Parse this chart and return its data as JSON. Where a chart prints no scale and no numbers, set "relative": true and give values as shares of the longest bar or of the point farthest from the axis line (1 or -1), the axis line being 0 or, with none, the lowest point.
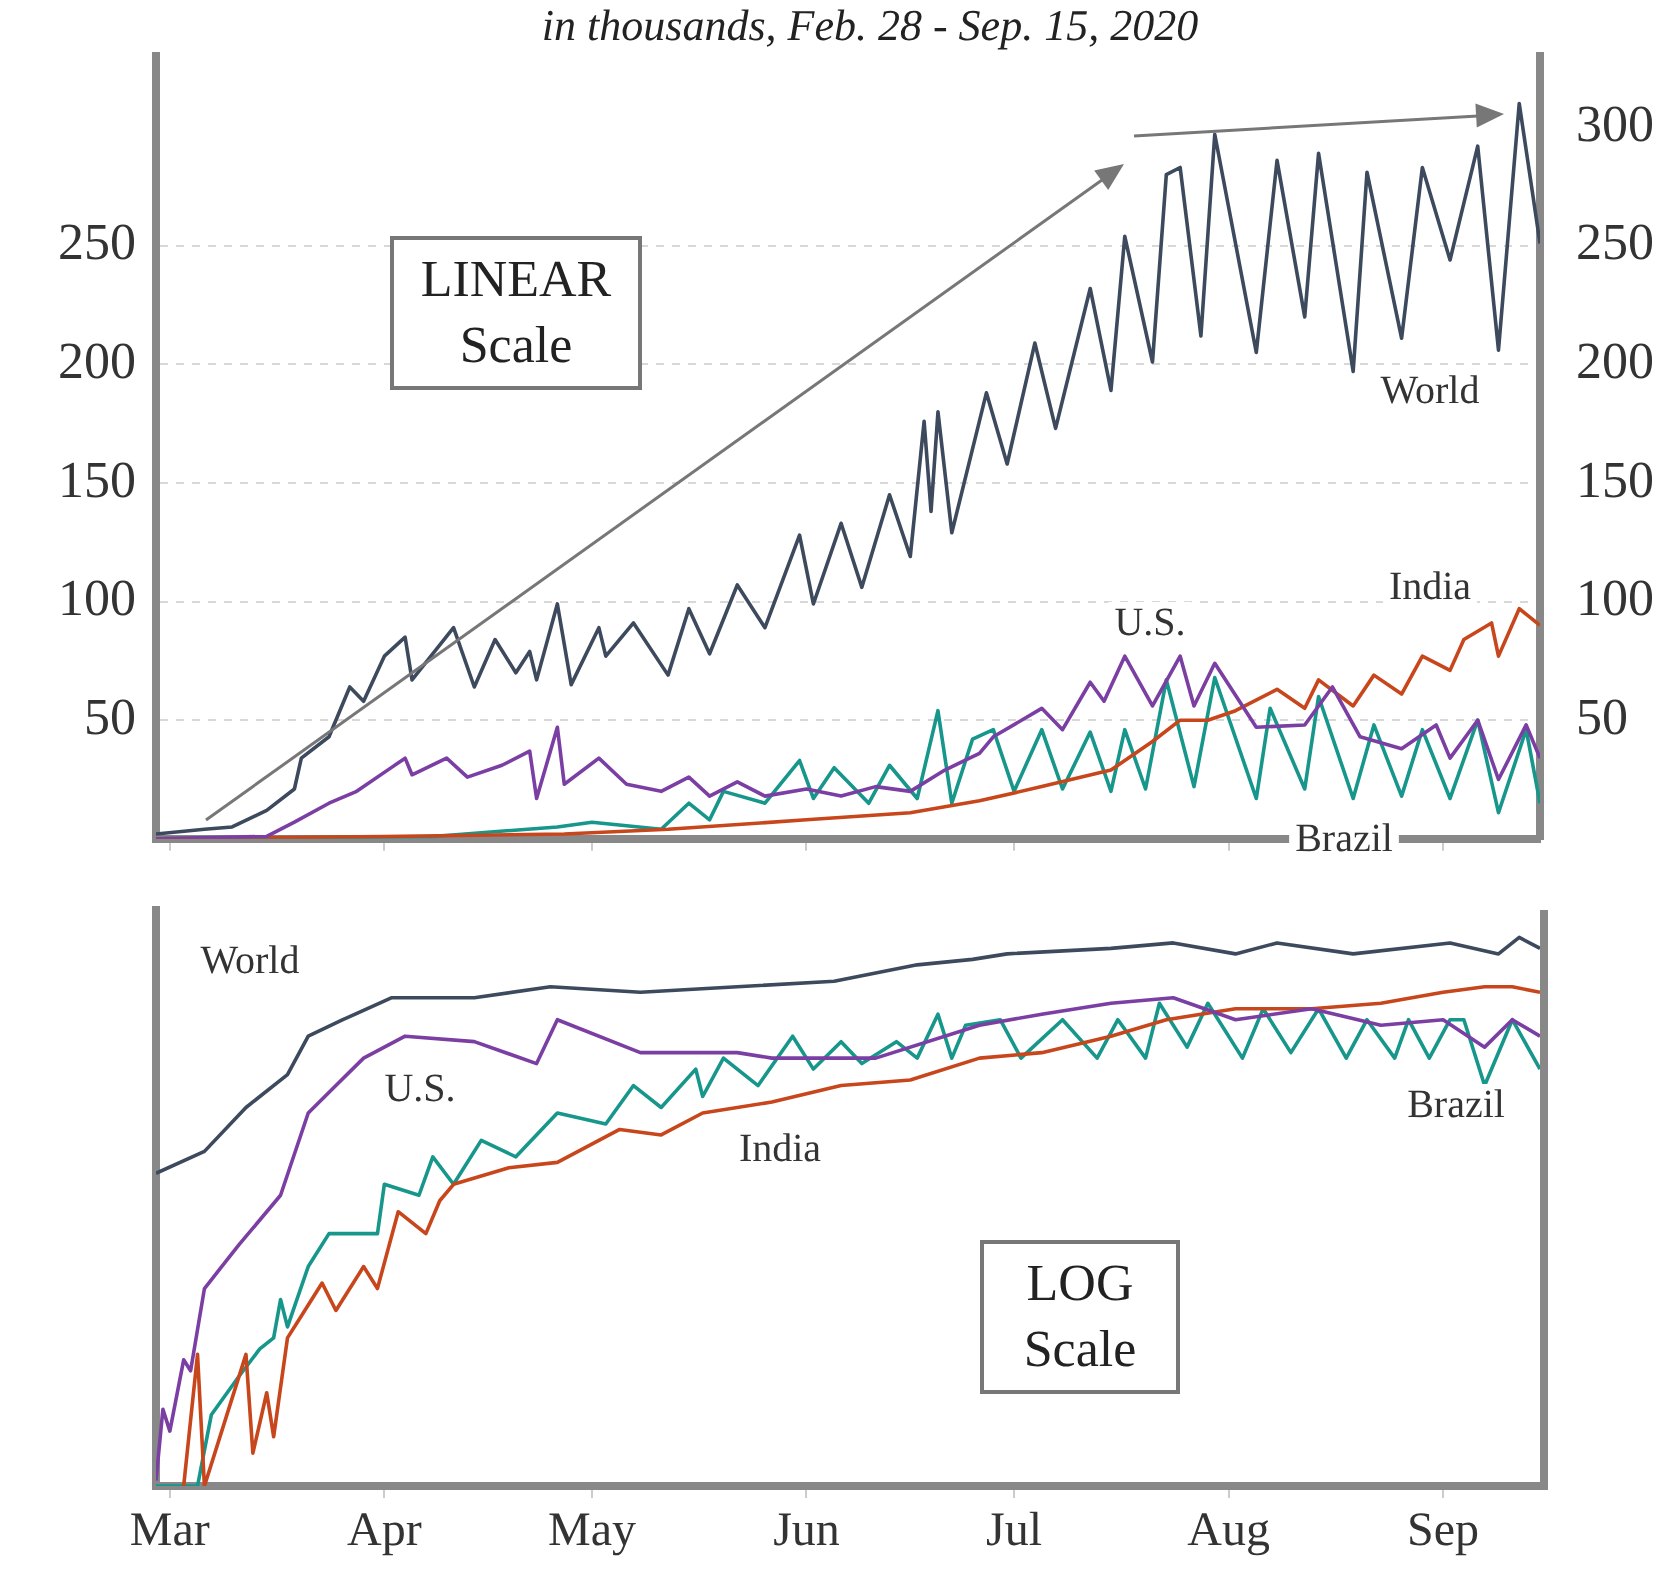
{
  "chart_data": [
    {
      "type": "line",
      "subtitle": "in thousands, Feb. 28 - Sep. 15, 2020",
      "annotations": [
        "LINEAR Scale"
      ],
      "xlim": [
        "2020-02-28",
        "2020-09-15"
      ],
      "xticks": [
        {
          "value": "2020-03-01",
          "label": null
        },
        {
          "value": "2020-04-01",
          "label": null
        },
        {
          "value": "2020-05-01",
          "label": null
        },
        {
          "value": "2020-06-01",
          "label": null
        },
        {
          "value": "2020-07-01",
          "label": null
        },
        {
          "value": "2020-08-01",
          "label": null
        },
        {
          "value": "2020-09-01",
          "label": null
        }
      ],
      "ylim": [
        0,
        330
      ],
      "yticks": [
        50,
        100,
        150,
        200,
        250
      ],
      "y2lim": [
        0,
        330
      ],
      "y2ticks": [
        50,
        100,
        150,
        200,
        250,
        300
      ],
      "tick_labels": "y",
      "grid": "y",
      "series": [
        {
          "name": "World",
          "color": "#3d4a5e",
          "x": [
            "2020-02-28",
            "2020-03-06",
            "2020-03-10",
            "2020-03-15",
            "2020-03-19",
            "2020-03-20",
            "2020-03-24",
            "2020-03-27",
            "2020-03-29",
            "2020-04-01",
            "2020-04-04",
            "2020-04-05",
            "2020-04-11",
            "2020-04-14",
            "2020-04-17",
            "2020-04-20",
            "2020-04-22",
            "2020-04-23",
            "2020-04-26",
            "2020-04-28",
            "2020-05-02",
            "2020-05-03",
            "2020-05-07",
            "2020-05-12",
            "2020-05-15",
            "2020-05-18",
            "2020-05-22",
            "2020-05-26",
            "2020-05-31",
            "2020-06-02",
            "2020-06-06",
            "2020-06-09",
            "2020-06-13",
            "2020-06-16",
            "2020-06-18",
            "2020-06-19",
            "2020-06-20",
            "2020-06-22",
            "2020-06-27",
            "2020-06-30",
            "2020-07-04",
            "2020-07-07",
            "2020-07-12",
            "2020-07-15",
            "2020-07-17",
            "2020-07-21",
            "2020-07-23",
            "2020-07-25",
            "2020-07-28",
            "2020-07-30",
            "2020-08-05",
            "2020-08-08",
            "2020-08-12",
            "2020-08-14",
            "2020-08-19",
            "2020-08-21",
            "2020-08-26",
            "2020-08-29",
            "2020-09-02",
            "2020-09-06",
            "2020-09-09",
            "2020-09-12",
            "2020-09-15"
          ],
          "values": [
            2,
            4,
            5,
            12,
            21,
            34,
            43,
            64,
            58,
            77,
            85,
            67,
            89,
            64,
            84,
            70,
            79,
            67,
            99,
            65,
            89,
            77,
            91,
            69,
            97,
            78,
            107,
            89,
            128,
            99,
            133,
            106,
            145,
            119,
            176,
            138,
            180,
            129,
            188,
            158,
            209,
            173,
            232,
            189,
            254,
            201,
            280,
            283,
            212,
            297,
            205,
            286,
            220,
            289,
            197,
            281,
            211,
            283,
            244,
            292,
            206,
            310,
            251
          ]
        },
        {
          "name": "U.S.",
          "color": "#7b3fa3",
          "x": [
            "2020-02-28",
            "2020-03-15",
            "2020-03-19",
            "2020-03-24",
            "2020-03-28",
            "2020-04-02",
            "2020-04-04",
            "2020-04-05",
            "2020-04-10",
            "2020-04-13",
            "2020-04-18",
            "2020-04-22",
            "2020-04-23",
            "2020-04-26",
            "2020-04-27",
            "2020-05-02",
            "2020-05-06",
            "2020-05-11",
            "2020-05-15",
            "2020-05-18",
            "2020-05-22",
            "2020-05-26",
            "2020-06-01",
            "2020-06-06",
            "2020-06-11",
            "2020-06-16",
            "2020-06-21",
            "2020-06-26",
            "2020-06-28",
            "2020-07-05",
            "2020-07-08",
            "2020-07-12",
            "2020-07-14",
            "2020-07-17",
            "2020-07-21",
            "2020-07-25",
            "2020-07-27",
            "2020-07-30",
            "2020-08-05",
            "2020-08-12",
            "2020-08-16",
            "2020-08-20",
            "2020-08-26",
            "2020-08-31",
            "2020-09-02",
            "2020-09-06",
            "2020-09-09",
            "2020-09-13",
            "2020-09-15"
          ],
          "values": [
            0,
            1,
            7,
            15,
            20,
            30,
            34,
            27,
            34,
            26,
            31,
            37,
            17,
            47,
            23,
            34,
            23,
            20,
            26,
            18,
            24,
            18,
            21,
            18,
            22,
            20,
            29,
            36,
            43,
            55,
            46,
            66,
            58,
            77,
            56,
            77,
            56,
            74,
            47,
            48,
            64,
            43,
            38,
            48,
            34,
            50,
            25,
            48,
            34
          ]
        },
        {
          "name": "India",
          "color": "#c8461c",
          "x": [
            "2020-02-28",
            "2020-04-01",
            "2020-04-27",
            "2020-05-12",
            "2020-06-01",
            "2020-06-16",
            "2020-06-26",
            "2020-07-05",
            "2020-07-15",
            "2020-07-21",
            "2020-07-25",
            "2020-07-29",
            "2020-08-02",
            "2020-08-08",
            "2020-08-12",
            "2020-08-14",
            "2020-08-19",
            "2020-08-22",
            "2020-08-26",
            "2020-08-29",
            "2020-09-02",
            "2020-09-04",
            "2020-09-08",
            "2020-09-09",
            "2020-09-12",
            "2020-09-15"
          ],
          "values": [
            0,
            1,
            2,
            4,
            8,
            11,
            16,
            22,
            29,
            41,
            50,
            50,
            54,
            63,
            55,
            67,
            56,
            69,
            61,
            77,
            71,
            84,
            91,
            77,
            97,
            90
          ]
        },
        {
          "name": "Brazil",
          "color": "#17968b",
          "x": [
            "2020-02-28",
            "2020-04-08",
            "2020-04-26",
            "2020-05-01",
            "2020-05-11",
            "2020-05-15",
            "2020-05-18",
            "2020-05-20",
            "2020-05-26",
            "2020-05-31",
            "2020-06-02",
            "2020-06-05",
            "2020-06-10",
            "2020-06-13",
            "2020-06-17",
            "2020-06-20",
            "2020-06-22",
            "2020-06-25",
            "2020-06-28",
            "2020-07-01",
            "2020-07-05",
            "2020-07-08",
            "2020-07-12",
            "2020-07-15",
            "2020-07-17",
            "2020-07-20",
            "2020-07-23",
            "2020-07-27",
            "2020-07-30",
            "2020-08-05",
            "2020-08-07",
            "2020-08-12",
            "2020-08-14",
            "2020-08-19",
            "2020-08-22",
            "2020-08-26",
            "2020-08-29",
            "2020-09-02",
            "2020-09-06",
            "2020-09-09",
            "2020-09-13",
            "2020-09-15"
          ],
          "values": [
            0,
            1,
            5,
            7,
            4,
            15,
            8,
            20,
            15,
            33,
            17,
            30,
            15,
            31,
            17,
            54,
            15,
            42,
            46,
            20,
            46,
            21,
            45,
            20,
            46,
            21,
            67,
            22,
            68,
            17,
            55,
            21,
            60,
            17,
            48,
            18,
            46,
            17,
            50,
            11,
            46,
            15
          ]
        }
      ]
    },
    {
      "type": "line",
      "annotations": [
        "LOG Scale"
      ],
      "relative": true,
      "xlim": [
        "2020-02-28",
        "2020-09-15"
      ],
      "xticks": [
        {
          "value": "2020-03-01",
          "label": "Mar"
        },
        {
          "value": "2020-04-01",
          "label": "Apr"
        },
        {
          "value": "2020-05-01",
          "label": "May"
        },
        {
          "value": "2020-06-01",
          "label": "Jun"
        },
        {
          "value": "2020-07-01",
          "label": "Jul"
        },
        {
          "value": "2020-08-01",
          "label": "Aug"
        },
        {
          "value": "2020-09-01",
          "label": "Sep"
        }
      ],
      "tick_labels": "x",
      "series": [
        {
          "name": "World",
          "color": "#3d4a5e",
          "x": [
            "2020-02-28",
            "2020-03-06",
            "2020-03-12",
            "2020-03-18",
            "2020-03-21",
            "2020-03-26",
            "2020-04-02",
            "2020-04-14",
            "2020-04-25",
            "2020-05-08",
            "2020-05-22",
            "2020-06-05",
            "2020-06-17",
            "2020-06-25",
            "2020-06-30",
            "2020-07-15",
            "2020-07-24",
            "2020-08-02",
            "2020-08-08",
            "2020-08-19",
            "2020-09-02",
            "2020-09-09",
            "2020-09-12",
            "2020-09-15"
          ],
          "values": [
            0.57,
            0.61,
            0.69,
            0.75,
            0.82,
            0.85,
            0.89,
            0.89,
            0.91,
            0.9,
            0.91,
            0.92,
            0.95,
            0.96,
            0.97,
            0.98,
            0.99,
            0.97,
            0.99,
            0.97,
            0.99,
            0.97,
            1,
            0.98
          ]
        },
        {
          "name": "U.S.",
          "color": "#7b3fa3",
          "x": [
            "2020-02-28",
            "2020-02-29",
            "2020-03-01",
            "2020-03-03",
            "2020-03-04",
            "2020-03-06",
            "2020-03-11",
            "2020-03-17",
            "2020-03-21",
            "2020-03-25",
            "2020-03-29",
            "2020-04-04",
            "2020-04-14",
            "2020-04-23",
            "2020-04-26",
            "2020-05-08",
            "2020-05-22",
            "2020-05-27",
            "2020-06-11",
            "2020-06-26",
            "2020-07-05",
            "2020-07-15",
            "2020-07-24",
            "2020-08-02",
            "2020-08-13",
            "2020-08-23",
            "2020-09-01",
            "2020-09-07",
            "2020-09-11",
            "2020-09-15"
          ],
          "values": [
            0.01,
            0.14,
            0.1,
            0.23,
            0.21,
            0.36,
            0.44,
            0.53,
            0.68,
            0.73,
            0.78,
            0.82,
            0.81,
            0.77,
            0.85,
            0.79,
            0.79,
            0.78,
            0.78,
            0.84,
            0.86,
            0.88,
            0.89,
            0.85,
            0.87,
            0.84,
            0.85,
            0.8,
            0.85,
            0.82
          ]
        },
        {
          "name": "India",
          "color": "#c8461c",
          "x": [
            "2020-03-03",
            "2020-03-05",
            "2020-03-06",
            "2020-03-08",
            "2020-03-12",
            "2020-03-13",
            "2020-03-15",
            "2020-03-16",
            "2020-03-18",
            "2020-03-20",
            "2020-03-23",
            "2020-03-25",
            "2020-03-29",
            "2020-03-31",
            "2020-04-03",
            "2020-04-07",
            "2020-04-09",
            "2020-04-11",
            "2020-04-19",
            "2020-04-26",
            "2020-05-05",
            "2020-05-11",
            "2020-05-17",
            "2020-05-27",
            "2020-06-06",
            "2020-06-16",
            "2020-06-26",
            "2020-07-05",
            "2020-07-15",
            "2020-07-23",
            "2020-08-02",
            "2020-08-13",
            "2020-08-23",
            "2020-09-01",
            "2020-09-07",
            "2020-09-11",
            "2020-09-15"
          ],
          "values": [
            0,
            0.24,
            0,
            0.08,
            0.24,
            0.06,
            0.17,
            0.09,
            0.27,
            0.31,
            0.37,
            0.32,
            0.4,
            0.36,
            0.5,
            0.46,
            0.52,
            0.55,
            0.58,
            0.59,
            0.65,
            0.64,
            0.68,
            0.7,
            0.73,
            0.74,
            0.78,
            0.79,
            0.82,
            0.85,
            0.87,
            0.87,
            0.88,
            0.9,
            0.91,
            0.91,
            0.9
          ]
        },
        {
          "name": "Brazil",
          "color": "#17968b",
          "x": [
            "2020-02-28",
            "2020-03-05",
            "2020-03-07",
            "2020-03-11",
            "2020-03-14",
            "2020-03-16",
            "2020-03-17",
            "2020-03-18",
            "2020-03-21",
            "2020-03-24",
            "2020-03-31",
            "2020-04-01",
            "2020-04-06",
            "2020-04-08",
            "2020-04-11",
            "2020-04-15",
            "2020-04-20",
            "2020-04-26",
            "2020-05-03",
            "2020-05-07",
            "2020-05-11",
            "2020-05-16",
            "2020-05-17",
            "2020-05-20",
            "2020-05-25",
            "2020-05-30",
            "2020-06-02",
            "2020-06-06",
            "2020-06-09",
            "2020-06-14",
            "2020-06-17",
            "2020-06-20",
            "2020-06-22",
            "2020-06-24",
            "2020-06-29",
            "2020-07-02",
            "2020-07-08",
            "2020-07-13",
            "2020-07-16",
            "2020-07-20",
            "2020-07-22",
            "2020-07-26",
            "2020-07-29",
            "2020-08-03",
            "2020-08-06",
            "2020-08-10",
            "2020-08-14",
            "2020-08-18",
            "2020-08-21",
            "2020-08-25",
            "2020-08-27",
            "2020-08-30",
            "2020-09-02",
            "2020-09-04",
            "2020-09-07",
            "2020-09-11",
            "2020-09-15"
          ],
          "values": [
            0,
            0,
            0.13,
            0.2,
            0.25,
            0.27,
            0.34,
            0.29,
            0.4,
            0.46,
            0.46,
            0.55,
            0.53,
            0.6,
            0.55,
            0.63,
            0.6,
            0.68,
            0.66,
            0.73,
            0.69,
            0.76,
            0.71,
            0.78,
            0.73,
            0.82,
            0.76,
            0.81,
            0.77,
            0.81,
            0.78,
            0.86,
            0.78,
            0.84,
            0.85,
            0.78,
            0.85,
            0.78,
            0.85,
            0.78,
            0.88,
            0.8,
            0.88,
            0.78,
            0.87,
            0.79,
            0.87,
            0.78,
            0.85,
            0.78,
            0.85,
            0.78,
            0.85,
            0.85,
            0.73,
            0.85,
            0.76
          ]
        }
      ]
    }
  ]
}
